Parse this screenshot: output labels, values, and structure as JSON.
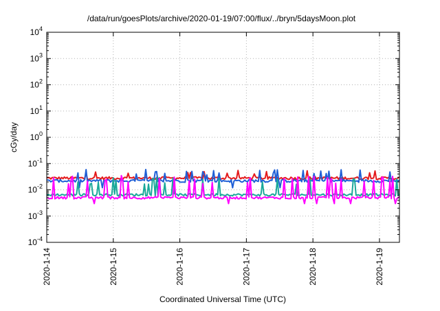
{
  "chart_data": {
    "type": "line",
    "title": "/data/run/goesPlots/archive/2020-01-19/07:00/flux/../bryn/5daysMoon.plot",
    "xlabel": "Coordinated Universal Time (UTC)",
    "ylabel": "cGy/day",
    "yscale": "log",
    "ylim": [
      0.0001,
      10000
    ],
    "y_ticks": [
      {
        "value": 0.0001,
        "base": "10",
        "exp": "-4"
      },
      {
        "value": 0.001,
        "base": "10",
        "exp": "-3"
      },
      {
        "value": 0.01,
        "base": "10",
        "exp": "-2"
      },
      {
        "value": 0.1,
        "base": "10",
        "exp": "-1"
      },
      {
        "value": 1,
        "base": "10",
        "exp": "0"
      },
      {
        "value": 10,
        "base": "10",
        "exp": "1"
      },
      {
        "value": 100,
        "base": "10",
        "exp": "2"
      },
      {
        "value": 1000,
        "base": "10",
        "exp": "3"
      },
      {
        "value": 10000,
        "base": "10",
        "exp": "4"
      }
    ],
    "xlim": [
      0,
      5.3
    ],
    "x_ticks": [
      {
        "value": 0,
        "label": "2020-1-14"
      },
      {
        "value": 1,
        "label": "2020-1-15"
      },
      {
        "value": 2,
        "label": "2020-1-16"
      },
      {
        "value": 3,
        "label": "2020-1-17"
      },
      {
        "value": 4,
        "label": "2020-1-18"
      },
      {
        "value": 5,
        "label": "2020-1-19"
      }
    ],
    "grid": true,
    "legend": "none",
    "series": [
      {
        "color": "#e41a1c",
        "base": 0.028,
        "spike": 0.055,
        "noise": 0.12,
        "spike_prob": 0.05
      },
      {
        "color": "#1f5fd6",
        "base": 0.022,
        "spike": 0.06,
        "noise": 0.12,
        "spike_prob": 0.08,
        "dip": 0.012
      },
      {
        "color": "#1aa89a",
        "base": 0.0065,
        "spike": 0.03,
        "noise": 0.1,
        "spike_prob": 0.1
      },
      {
        "color": "#ff00ff",
        "base": 0.005,
        "spike": 0.035,
        "noise": 0.1,
        "spike_prob": 0.12,
        "dip": 0.003
      }
    ]
  }
}
